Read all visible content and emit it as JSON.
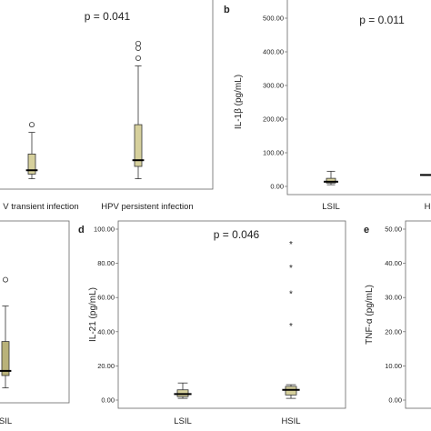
{
  "colors": {
    "box_fill": "#d6d09c",
    "box_fill_dark": "#b9b279",
    "stroke": "#333333"
  },
  "chart_data": [
    {
      "panel": "a",
      "type": "boxplot",
      "p_label": "p = 0.041",
      "categories": [
        "V transient infection",
        "HPV persistent infection"
      ],
      "ylabel": "",
      "ylim": [
        0,
        100
      ],
      "series": [
        {
          "category": "V transient infection",
          "whisker_low": 2,
          "q1": 5,
          "median": 7.5,
          "q3": 18,
          "whisker_high": 32,
          "outliers": [
            37
          ]
        },
        {
          "category": "HPV persistent infection",
          "whisker_low": 2,
          "q1": 10,
          "median": 14,
          "q3": 37,
          "whisker_high": 75,
          "outliers": [
            80,
            86.5,
            89.5
          ]
        }
      ]
    },
    {
      "panel": "b",
      "letter": "b",
      "type": "boxplot",
      "p_label": "p = 0.011",
      "categories": [
        "LSIL",
        "H"
      ],
      "ylabel": "IL-1β (pg/mL)",
      "yticks": [
        "0.00",
        "100.00",
        "200.00",
        "300.00",
        "400.00",
        "500.00"
      ],
      "ylim": [
        0,
        500
      ],
      "series": [
        {
          "category": "LSIL",
          "whisker_low": 5,
          "q1": 10,
          "median": 14,
          "q3": 24,
          "whisker_high": 45,
          "outliers": []
        },
        {
          "category": "H",
          "whisker_low": 34,
          "q1": 34,
          "median": 34,
          "q3": 34,
          "whisker_high": 34,
          "outliers": []
        }
      ]
    },
    {
      "panel": "c",
      "type": "boxplot",
      "categories": [
        "SIL"
      ],
      "ylim": [
        0,
        100
      ],
      "series": [
        {
          "category": "SIL",
          "whisker_low": 2,
          "q1": 10,
          "median": 13,
          "q3": 32,
          "whisker_high": 55,
          "outliers": [
            72
          ]
        }
      ]
    },
    {
      "panel": "d",
      "letter": "d",
      "type": "boxplot",
      "p_label": "p = 0.046",
      "categories": [
        "LSIL",
        "HSIL"
      ],
      "ylabel": "IL-21 (pg/mL)",
      "yticks": [
        "0.00",
        "20.00",
        "40.00",
        "60.00",
        "80.00",
        "100.00"
      ],
      "ylim": [
        0,
        100
      ],
      "series": [
        {
          "category": "LSIL",
          "whisker_low": 1,
          "q1": 2,
          "median": 3.5,
          "q3": 6,
          "whisker_high": 10,
          "outliers": []
        },
        {
          "category": "HSIL",
          "whisker_low": 1,
          "q1": 3,
          "median": 6,
          "q3": 8,
          "whisker_high": 9,
          "outliers": [
            43,
            62,
            77,
            91
          ]
        }
      ]
    },
    {
      "panel": "e",
      "letter": "e",
      "type": "boxplot",
      "ylabel": "TNF-α (pg/mL)",
      "yticks": [
        "0.00",
        "10.00",
        "20.00",
        "30.00",
        "40.00",
        "50.00"
      ],
      "ylim": [
        0,
        50
      ],
      "categories": [],
      "series": []
    }
  ]
}
